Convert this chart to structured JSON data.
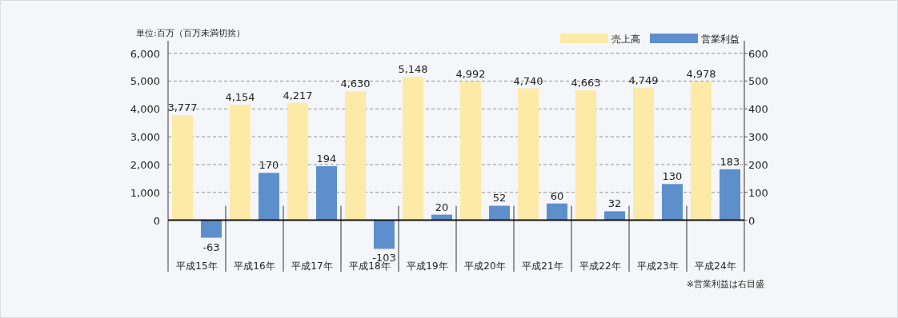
{
  "chart_data": {
    "type": "bar",
    "annotations": [
      "単位:百万（百万未満切捨）",
      "※営業利益は右目盛"
    ],
    "categories": [
      "平成15年",
      "平成16年",
      "平成17年",
      "平成18年",
      "平成19年",
      "平成20年",
      "平成21年",
      "平成22年",
      "平成23年",
      "平成24年"
    ],
    "series": [
      {
        "name": "売上高",
        "color": "#fdeaa6",
        "values": [
          3777,
          4154,
          4217,
          4630,
          5148,
          4992,
          4740,
          4663,
          4749,
          4978
        ],
        "value_labels": [
          "3,777",
          "4,154",
          "4,217",
          "4,630",
          "5,148",
          "4,992",
          "4,740",
          "4,663",
          "4,749",
          "4,978"
        ]
      },
      {
        "name": "営業利益",
        "color": "#5e8fcd",
        "axis": "y2",
        "values": [
          -63,
          170,
          194,
          -103,
          20,
          52,
          60,
          32,
          130,
          183
        ],
        "value_labels": [
          "-63",
          "170",
          "194",
          "-103",
          "20",
          "52",
          "60",
          "32",
          "130",
          "183"
        ]
      }
    ],
    "ylim": [
      -1850,
      6450
    ],
    "yticks": [
      {
        "value": 0,
        "label": "0"
      },
      {
        "value": 1000,
        "label": "1,000"
      },
      {
        "value": 2000,
        "label": "2,000"
      },
      {
        "value": 3000,
        "label": "3,000"
      },
      {
        "value": 4000,
        "label": "4,000"
      },
      {
        "value": 5000,
        "label": "5,000"
      },
      {
        "value": 6000,
        "label": "6,000"
      }
    ],
    "y2lim": [
      -185,
      645
    ],
    "y2ticks": [
      0,
      100,
      200,
      300,
      400,
      500,
      600
    ],
    "grid": "y",
    "legend": "top right"
  }
}
